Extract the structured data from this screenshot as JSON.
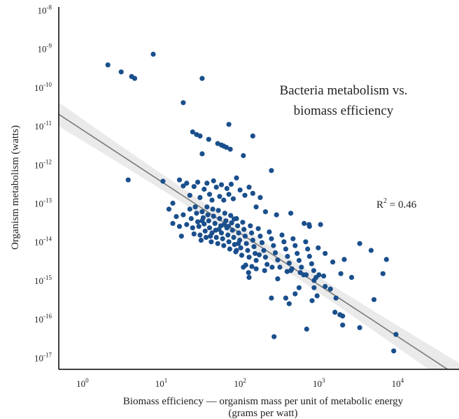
{
  "chart_data": {
    "type": "scatter",
    "title": "Bacteria metabolism vs. biomass efficiency",
    "title_lines": [
      "Bacteria metabolism vs.",
      "biomass efficiency"
    ],
    "xlabel_lines": [
      "Biomass efficiency — organism mass per unit of metabolic energy",
      "(grams per watt)"
    ],
    "ylabel": "Organism metabolism (watts)",
    "x_scale": "log",
    "y_scale": "log",
    "xlim": [
      0.5,
      60000
    ],
    "ylim": [
      5e-18,
      1.2e-08
    ],
    "x_ticks": [
      {
        "base": "10",
        "exp": "0"
      },
      {
        "base": "10",
        "exp": "1"
      },
      {
        "base": "10",
        "exp": "2"
      },
      {
        "base": "10",
        "exp": "3"
      },
      {
        "base": "10",
        "exp": "4"
      }
    ],
    "y_ticks": [
      {
        "base": "10",
        "exp": "-17"
      },
      {
        "base": "10",
        "exp": "-16"
      },
      {
        "base": "10",
        "exp": "-15"
      },
      {
        "base": "10",
        "exp": "-14"
      },
      {
        "base": "10",
        "exp": "-13"
      },
      {
        "base": "10",
        "exp": "-12"
      },
      {
        "base": "10",
        "exp": "-11"
      },
      {
        "base": "10",
        "exp": "-10"
      },
      {
        "base": "10",
        "exp": "-9"
      },
      {
        "base": "10",
        "exp": "-8"
      }
    ],
    "r_squared_label": {
      "prefix": "R",
      "exp": "2",
      "suffix": " = 0.46"
    },
    "grid": false,
    "legend": "none",
    "colors": {
      "points": "#1a4f8c",
      "fit_line": "#7a7a7a",
      "band": "#d9d9d9"
    },
    "fit": {
      "x": [
        0.5,
        60000
      ],
      "y": [
        2e-11,
        3.2e-18
      ],
      "band_factor": [
        1.5,
        2.3
      ]
    },
    "points": [
      [
        2.1,
        3.8e-10
      ],
      [
        3.1,
        2.5e-10
      ],
      [
        4.2,
        1.9e-10
      ],
      [
        4.6,
        1.7e-10
      ],
      [
        7.9,
        7.2e-10
      ],
      [
        33,
        1.7e-10
      ],
      [
        19,
        4e-11
      ],
      [
        3.8,
        4e-13
      ],
      [
        25,
        7e-12
      ],
      [
        28,
        6e-12
      ],
      [
        31,
        5.5e-12
      ],
      [
        40,
        4.5e-12
      ],
      [
        52,
        3.5e-12
      ],
      [
        58,
        3.2e-12
      ],
      [
        62,
        3e-12
      ],
      [
        67,
        2.8e-12
      ],
      [
        75,
        2.5e-12
      ],
      [
        72,
        1.1e-11
      ],
      [
        145,
        5.5e-12
      ],
      [
        33,
        1.9e-12
      ],
      [
        110,
        1.7e-12
      ],
      [
        250,
        7e-13
      ],
      [
        10.5,
        3.7e-13
      ],
      [
        14,
        1e-13
      ],
      [
        17,
        4e-13
      ],
      [
        19,
        2.8e-13
      ],
      [
        21,
        3.3e-13
      ],
      [
        23,
        1.6e-13
      ],
      [
        26,
        2.7e-13
      ],
      [
        29,
        3.5e-13
      ],
      [
        31,
        1.4e-13
      ],
      [
        35,
        2.3e-13
      ],
      [
        38,
        3.3e-13
      ],
      [
        41,
        1.7e-13
      ],
      [
        44,
        1.2e-13
      ],
      [
        46,
        3.8e-13
      ],
      [
        50,
        2.6e-13
      ],
      [
        55,
        1.5e-13
      ],
      [
        58,
        3e-13
      ],
      [
        62,
        1.2e-13
      ],
      [
        68,
        2.4e-13
      ],
      [
        72,
        1.7e-13
      ],
      [
        77,
        3.1e-13
      ],
      [
        82,
        1.3e-13
      ],
      [
        90,
        4.5e-13
      ],
      [
        100,
        2.2e-13
      ],
      [
        115,
        1.6e-13
      ],
      [
        130,
        2.6e-13
      ],
      [
        145,
        1.8e-13
      ],
      [
        160,
        8e-14
      ],
      [
        180,
        1.4e-13
      ],
      [
        210,
        6e-14
      ],
      [
        290,
        5e-14
      ],
      [
        440,
        5.5e-14
      ],
      [
        650,
        3e-14
      ],
      [
        750,
        2.8e-14
      ],
      [
        1050,
        2.8e-14
      ],
      [
        12.5,
        7e-14
      ],
      [
        14,
        3e-14
      ],
      [
        15.5,
        4.5e-14
      ],
      [
        17,
        2.5e-14
      ],
      [
        19,
        5e-14
      ],
      [
        21,
        2.8e-14
      ],
      [
        23,
        7e-14
      ],
      [
        24,
        4e-14
      ],
      [
        25,
        2.3e-14
      ],
      [
        26,
        1.6e-14
      ],
      [
        27,
        8e-14
      ],
      [
        28,
        5.5e-14
      ],
      [
        29,
        3.3e-14
      ],
      [
        30,
        2.5e-14
      ],
      [
        31,
        1.5e-14
      ],
      [
        32,
        1.1e-14
      ],
      [
        33,
        6e-14
      ],
      [
        34,
        4.2e-14
      ],
      [
        35,
        2.9e-14
      ],
      [
        36,
        1.9e-14
      ],
      [
        38,
        8e-14
      ],
      [
        39,
        5e-14
      ],
      [
        40,
        3.5e-14
      ],
      [
        41,
        2.3e-14
      ],
      [
        42,
        1.4e-14
      ],
      [
        43,
        1e-14
      ],
      [
        45,
        7e-14
      ],
      [
        46,
        4.6e-14
      ],
      [
        48,
        3e-14
      ],
      [
        49,
        2e-14
      ],
      [
        50,
        1.3e-14
      ],
      [
        52,
        9e-15
      ],
      [
        53,
        6.5e-14
      ],
      [
        55,
        4e-14
      ],
      [
        57,
        2.6e-14
      ],
      [
        58,
        1.7e-14
      ],
      [
        60,
        1.2e-14
      ],
      [
        62,
        8e-15
      ],
      [
        64,
        5.5e-14
      ],
      [
        66,
        3.5e-14
      ],
      [
        68,
        2.3e-14
      ],
      [
        70,
        1.5e-14
      ],
      [
        72,
        1e-14
      ],
      [
        74,
        6.5e-15
      ],
      [
        76,
        4.8e-14
      ],
      [
        78,
        3.1e-14
      ],
      [
        80,
        2e-14
      ],
      [
        83,
        1.3e-14
      ],
      [
        85,
        8.5e-15
      ],
      [
        88,
        5.5e-15
      ],
      [
        90,
        4e-14
      ],
      [
        93,
        2.6e-14
      ],
      [
        96,
        1.7e-14
      ],
      [
        99,
        1.1e-14
      ],
      [
        102,
        7e-15
      ],
      [
        105,
        4.5e-15
      ],
      [
        108,
        3.2e-14
      ],
      [
        112,
        2.1e-14
      ],
      [
        116,
        1.4e-14
      ],
      [
        120,
        9e-15
      ],
      [
        125,
        6e-15
      ],
      [
        130,
        4e-15
      ],
      [
        135,
        2.6e-14
      ],
      [
        140,
        1.7e-14
      ],
      [
        145,
        1.1e-14
      ],
      [
        150,
        7.5e-15
      ],
      [
        155,
        5e-15
      ],
      [
        160,
        3.3e-15
      ],
      [
        170,
        2.2e-14
      ],
      [
        180,
        1.4e-14
      ],
      [
        190,
        9.5e-15
      ],
      [
        200,
        6e-15
      ],
      [
        210,
        4e-15
      ],
      [
        220,
        2.6e-15
      ],
      [
        235,
        1.8e-14
      ],
      [
        250,
        1.2e-14
      ],
      [
        265,
        8e-15
      ],
      [
        280,
        5.2e-15
      ],
      [
        300,
        3.4e-15
      ],
      [
        320,
        2.2e-15
      ],
      [
        340,
        1.5e-14
      ],
      [
        360,
        1e-14
      ],
      [
        380,
        6.5e-15
      ],
      [
        400,
        4.2e-15
      ],
      [
        420,
        2.8e-15
      ],
      [
        440,
        1.8e-15
      ],
      [
        470,
        1.2e-14
      ],
      [
        500,
        8e-15
      ],
      [
        530,
        5e-15
      ],
      [
        560,
        3.3e-15
      ],
      [
        600,
        2.2e-15
      ],
      [
        640,
        1.4e-15
      ],
      [
        680,
        1e-14
      ],
      [
        720,
        6.5e-15
      ],
      [
        760,
        4.2e-15
      ],
      [
        810,
        2.7e-15
      ],
      [
        860,
        1.8e-15
      ],
      [
        920,
        1.2e-15
      ],
      [
        760,
        2.5e-14
      ],
      [
        980,
        7e-15
      ],
      [
        1200,
        5e-15
      ],
      [
        1500,
        3e-15
      ],
      [
        1900,
        1.5e-15
      ],
      [
        2100,
        3.5e-15
      ],
      [
        2600,
        1.2e-15
      ],
      [
        3300,
        9e-15
      ],
      [
        4600,
        6e-15
      ],
      [
        7200,
        3.5e-15
      ],
      [
        6500,
        1.5e-15
      ],
      [
        5000,
        3.2e-16
      ],
      [
        1200,
        7e-16
      ],
      [
        1600,
        1.5e-16
      ],
      [
        1850,
        1.3e-16
      ],
      [
        2000,
        1.2e-16
      ],
      [
        3300,
        6e-17
      ],
      [
        9500,
        4e-17
      ],
      [
        8900,
        1.5e-17
      ],
      [
        2000,
        7e-17
      ],
      [
        1400,
        6e-16
      ],
      [
        1000,
        1.4e-15
      ],
      [
        950,
        4e-16
      ],
      [
        820,
        3e-16
      ],
      [
        700,
        5.5e-17
      ],
      [
        500,
        4.5e-16
      ],
      [
        380,
        3.5e-16
      ],
      [
        270,
        3.5e-17
      ],
      [
        160,
        2e-15
      ],
      [
        130,
        1.2e-15
      ],
      [
        110,
        2.2e-15
      ],
      [
        90,
        6e-15
      ],
      [
        250,
        3.5e-16
      ],
      [
        300,
        1.1e-15
      ],
      [
        420,
        2.5e-16
      ],
      [
        1650,
        3.5e-16
      ],
      [
        33,
        3.5e-14
      ],
      [
        18,
        1.4e-14
      ],
      [
        37,
        1.3e-14
      ],
      [
        44,
        1.7e-14
      ],
      [
        54,
        2.1e-14
      ],
      [
        63,
        2.8e-14
      ],
      [
        71,
        2.5e-14
      ],
      [
        84,
        3.9e-14
      ],
      [
        95,
        9e-15
      ],
      [
        118,
        2.5e-15
      ],
      [
        128,
        1.6e-15
      ],
      [
        141,
        2.3e-15
      ],
      [
        175,
        4.6e-15
      ],
      [
        205,
        1.8e-15
      ],
      [
        255,
        2.2e-15
      ],
      [
        395,
        1.7e-15
      ],
      [
        455,
        2e-15
      ],
      [
        580,
        1.6e-15
      ],
      [
        690,
        1.4e-15
      ],
      [
        870,
        1e-15
      ],
      [
        1150,
        1.3e-15
      ],
      [
        560,
        6.5e-16
      ],
      [
        870,
        6.5e-16
      ]
    ]
  }
}
